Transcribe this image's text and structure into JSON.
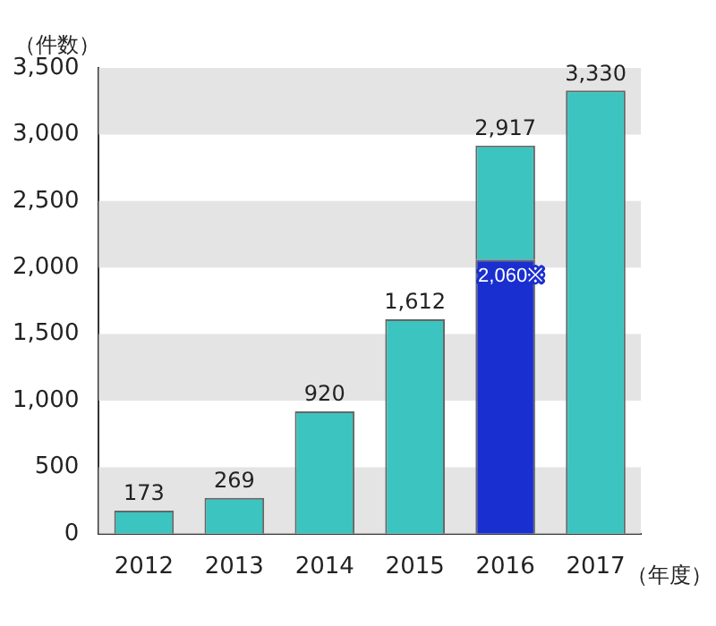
{
  "chart_data": {
    "type": "bar",
    "stacked": true,
    "ylabel": "（件数）",
    "xlabel": "（年度）",
    "categories": [
      "2012",
      "2013",
      "2014",
      "2015",
      "2016",
      "2017"
    ],
    "series": [
      {
        "color": "#1a2fd0",
        "values": [
          null,
          null,
          null,
          null,
          2060,
          null
        ],
        "value_labels": [
          null,
          null,
          null,
          null,
          "2,060※",
          null
        ]
      },
      {
        "color": "#3cc4c0",
        "values": [
          173,
          269,
          920,
          1612,
          857,
          3330
        ]
      }
    ],
    "totals": [
      "173",
      "269",
      "920",
      "1,612",
      "2,917",
      "3,330"
    ],
    "ylim": [
      0,
      3500
    ],
    "yticks": [
      0,
      500,
      {
        "value": 1000,
        "label": "1,000"
      },
      {
        "value": 1500,
        "label": "1,500"
      },
      {
        "value": 2000,
        "label": "2,000"
      },
      {
        "value": 2500,
        "label": "2,500"
      },
      {
        "value": 3000,
        "label": "3,000"
      },
      {
        "value": 3500,
        "label": "3,500"
      }
    ],
    "legend": false
  }
}
